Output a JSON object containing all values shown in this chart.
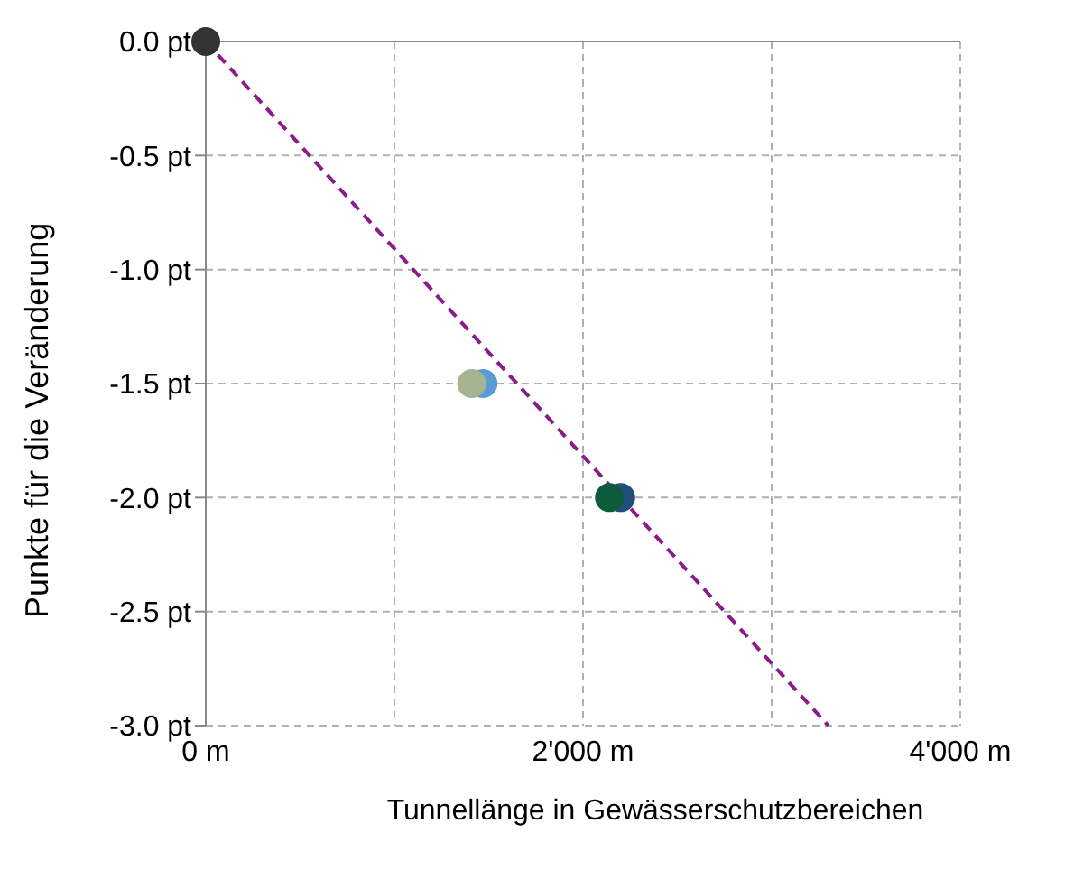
{
  "chart_data": {
    "type": "scatter",
    "xlabel": "Tunnellänge in Gewässerschutzbereichen",
    "ylabel": "Punkte für die Veränderung",
    "xlim": [
      0,
      4000
    ],
    "xticks": [
      {
        "value": 0,
        "label": "0 m"
      },
      {
        "value": 1000,
        "label": null
      },
      {
        "value": 2000,
        "label": "2'000 m"
      },
      {
        "value": 3000,
        "label": null
      },
      {
        "value": 4000,
        "label": "4'000 m"
      }
    ],
    "ylim": [
      -3,
      0
    ],
    "yticks": [
      {
        "value": 0,
        "label": "0.0 pt"
      },
      {
        "value": -0.5,
        "label": "-0.5 pt"
      },
      {
        "value": -1,
        "label": "-1.0 pt"
      },
      {
        "value": -1.5,
        "label": "-1.5 pt"
      },
      {
        "value": -2,
        "label": "-2.0 pt"
      },
      {
        "value": -2.5,
        "label": "-2.5 pt"
      },
      {
        "value": -3,
        "label": "-3.0 pt"
      }
    ],
    "grid": true,
    "marker": "circle",
    "series": [
      {
        "type": "line",
        "color": "#8b1a8b",
        "x": [
          0,
          3300
        ],
        "values": [
          0,
          -3
        ],
        "line_style": "dashed",
        "marker": "none"
      },
      {
        "color": "#333333",
        "x": [
          0
        ],
        "values": [
          0
        ]
      },
      {
        "color": "#5b9bd5",
        "x": [
          1470
        ],
        "values": [
          -1.5
        ]
      },
      {
        "color": "#a5b592",
        "x": [
          1410
        ],
        "values": [
          -1.5
        ]
      },
      {
        "color": "#1f4e79",
        "x": [
          2200
        ],
        "values": [
          -2
        ]
      },
      {
        "color": "#0e5c3c",
        "x": [
          2140
        ],
        "values": [
          -2
        ]
      }
    ]
  }
}
